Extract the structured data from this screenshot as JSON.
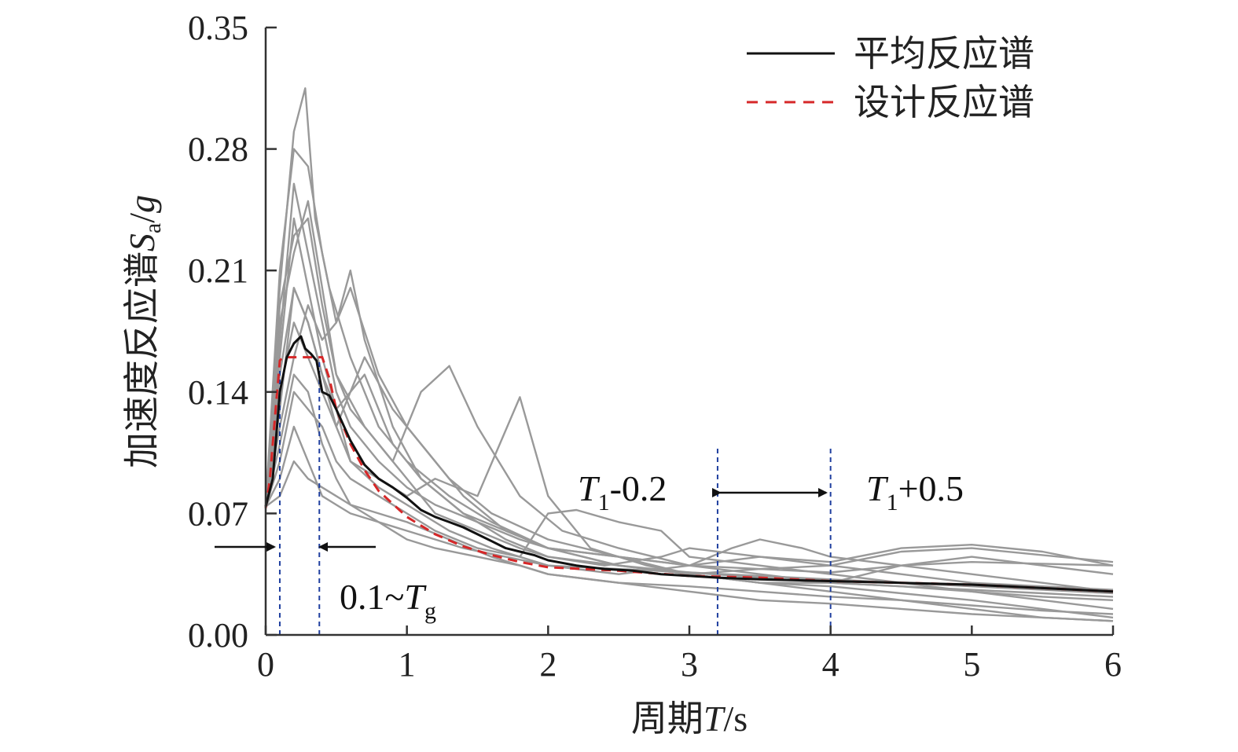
{
  "chart_data": {
    "type": "line",
    "xlabel": {
      "prefix": "周期",
      "var": "T",
      "suffix": "/s"
    },
    "ylabel": {
      "prefix": "加速度反应谱",
      "var": "S",
      "sub": "a",
      "slash": "/",
      "var2": "g"
    },
    "xlim": [
      0,
      6
    ],
    "ylim": [
      0,
      0.35
    ],
    "x_ticks": [
      0,
      1,
      2,
      3,
      4,
      5,
      6
    ],
    "x_tick_labels": [
      "0",
      "1",
      "2",
      "3",
      "4",
      "5",
      "6"
    ],
    "y_ticks": [
      0,
      0.07,
      0.14,
      0.21,
      0.28,
      0.35
    ],
    "y_tick_labels": [
      "0.00",
      "0.07",
      "0.14",
      "0.21",
      "0.28",
      "0.35"
    ],
    "grid": false,
    "legend_position": "top-right",
    "legend": [
      {
        "label": "平均反应谱",
        "color": "#111111",
        "style": "solid"
      },
      {
        "label": "设计反应谱",
        "color": "#d62728",
        "style": "dashed"
      }
    ],
    "mean_spectrum": {
      "name": "平均反应谱",
      "color": "#111111",
      "x": [
        0,
        0.05,
        0.1,
        0.15,
        0.2,
        0.25,
        0.28,
        0.32,
        0.36,
        0.4,
        0.45,
        0.5,
        0.6,
        0.7,
        0.8,
        0.9,
        1.0,
        1.1,
        1.2,
        1.3,
        1.4,
        1.5,
        1.6,
        1.7,
        1.8,
        1.9,
        2.0,
        2.2,
        2.4,
        2.6,
        2.8,
        3.0,
        3.2,
        3.5,
        4.0,
        4.5,
        5.0,
        5.5,
        6.0
      ],
      "y": [
        0.074,
        0.09,
        0.14,
        0.16,
        0.168,
        0.172,
        0.165,
        0.162,
        0.158,
        0.14,
        0.138,
        0.13,
        0.112,
        0.098,
        0.09,
        0.085,
        0.079,
        0.072,
        0.068,
        0.065,
        0.062,
        0.058,
        0.054,
        0.05,
        0.048,
        0.046,
        0.043,
        0.04,
        0.038,
        0.037,
        0.035,
        0.034,
        0.033,
        0.032,
        0.031,
        0.03,
        0.029,
        0.027,
        0.025
      ]
    },
    "design_spectrum": {
      "name": "设计反应谱",
      "color": "#d62728",
      "x": [
        0,
        0.03,
        0.06,
        0.1,
        0.12,
        0.4,
        0.45,
        0.5,
        0.6,
        0.7,
        0.8,
        1.0,
        1.2,
        1.4,
        1.6,
        1.8,
        2.0,
        2.5,
        3.0,
        3.5,
        4.0,
        4.5,
        5.0,
        5.5,
        6.0
      ],
      "y": [
        0.073,
        0.09,
        0.12,
        0.158,
        0.16,
        0.16,
        0.148,
        0.13,
        0.11,
        0.095,
        0.083,
        0.068,
        0.058,
        0.051,
        0.046,
        0.042,
        0.039,
        0.037,
        0.034,
        0.033,
        0.031,
        0.03,
        0.029,
        0.027,
        0.025
      ]
    },
    "record_spectra_color": "#999999",
    "record_spectra": [
      {
        "x": [
          0,
          0.1,
          0.2,
          0.28,
          0.35,
          0.45,
          0.6,
          0.8,
          1.0,
          1.3,
          1.6,
          2.0,
          2.5,
          3.0,
          3.5,
          4.0,
          4.5,
          5.0,
          5.5,
          6.0
        ],
        "y": [
          0.074,
          0.2,
          0.29,
          0.315,
          0.24,
          0.2,
          0.16,
          0.12,
          0.1,
          0.08,
          0.065,
          0.05,
          0.04,
          0.035,
          0.038,
          0.036,
          0.04,
          0.042,
          0.041,
          0.04
        ]
      },
      {
        "x": [
          0,
          0.1,
          0.2,
          0.3,
          0.4,
          0.5,
          0.6,
          0.8,
          1.0,
          1.3,
          1.6,
          2.0,
          2.5,
          3.0,
          3.5,
          4.0,
          4.5,
          5.0,
          5.5,
          6.0
        ],
        "y": [
          0.074,
          0.21,
          0.28,
          0.27,
          0.22,
          0.18,
          0.2,
          0.15,
          0.12,
          0.09,
          0.07,
          0.055,
          0.045,
          0.04,
          0.045,
          0.042,
          0.05,
          0.052,
          0.048,
          0.04
        ]
      },
      {
        "x": [
          0,
          0.1,
          0.2,
          0.3,
          0.4,
          0.5,
          0.7,
          0.9,
          1.1,
          1.3,
          1.5,
          1.8,
          2.1,
          2.5,
          3.0,
          3.5,
          4.0,
          4.5,
          5.0,
          5.5,
          6.0
        ],
        "y": [
          0.074,
          0.18,
          0.22,
          0.25,
          0.2,
          0.15,
          0.12,
          0.1,
          0.14,
          0.155,
          0.12,
          0.08,
          0.06,
          0.05,
          0.04,
          0.035,
          0.03,
          0.028,
          0.025,
          0.022,
          0.02
        ]
      },
      {
        "x": [
          0,
          0.1,
          0.2,
          0.3,
          0.4,
          0.5,
          0.6,
          0.8,
          1.0,
          1.2,
          1.5,
          1.8,
          2.0,
          2.3,
          2.7,
          3.0,
          3.5,
          4.0,
          4.5,
          5.0,
          5.5,
          6.0
        ],
        "y": [
          0.074,
          0.15,
          0.2,
          0.18,
          0.15,
          0.12,
          0.1,
          0.09,
          0.08,
          0.09,
          0.08,
          0.137,
          0.08,
          0.05,
          0.04,
          0.035,
          0.03,
          0.028,
          0.024,
          0.02,
          0.015,
          0.01
        ]
      },
      {
        "x": [
          0,
          0.1,
          0.2,
          0.3,
          0.4,
          0.5,
          0.6,
          0.7,
          0.9,
          1.1,
          1.4,
          1.7,
          2.0,
          2.5,
          3.0,
          3.5,
          4.0,
          4.5,
          5.0,
          5.5,
          6.0
        ],
        "y": [
          0.074,
          0.12,
          0.16,
          0.19,
          0.17,
          0.18,
          0.21,
          0.17,
          0.12,
          0.09,
          0.07,
          0.06,
          0.05,
          0.04,
          0.035,
          0.03,
          0.025,
          0.02,
          0.015,
          0.01,
          0.008
        ]
      },
      {
        "x": [
          0,
          0.1,
          0.2,
          0.3,
          0.4,
          0.5,
          0.6,
          0.8,
          1.0,
          1.2,
          1.5,
          1.8,
          2.0,
          2.2,
          2.5,
          2.8,
          3.0,
          3.5,
          4.0,
          4.5,
          5.0,
          5.5,
          6.0
        ],
        "y": [
          0.074,
          0.1,
          0.14,
          0.13,
          0.12,
          0.1,
          0.09,
          0.08,
          0.07,
          0.06,
          0.05,
          0.045,
          0.07,
          0.072,
          0.065,
          0.06,
          0.045,
          0.04,
          0.035,
          0.03,
          0.025,
          0.02,
          0.015
        ]
      },
      {
        "x": [
          0,
          0.1,
          0.2,
          0.3,
          0.4,
          0.5,
          0.6,
          0.8,
          1.0,
          1.3,
          1.6,
          2.0,
          2.5,
          3.0,
          3.3,
          3.5,
          3.8,
          4.0,
          4.5,
          5.0,
          5.5,
          6.0
        ],
        "y": [
          0.074,
          0.16,
          0.24,
          0.2,
          0.16,
          0.13,
          0.1,
          0.085,
          0.075,
          0.06,
          0.05,
          0.04,
          0.035,
          0.04,
          0.05,
          0.055,
          0.05,
          0.045,
          0.04,
          0.035,
          0.03,
          0.025
        ]
      },
      {
        "x": [
          0,
          0.1,
          0.2,
          0.3,
          0.4,
          0.5,
          0.7,
          0.9,
          1.1,
          1.4,
          1.7,
          2.0,
          2.5,
          3.0,
          3.5,
          4.0,
          4.5,
          5.0,
          5.5,
          6.0
        ],
        "y": [
          0.074,
          0.14,
          0.18,
          0.16,
          0.14,
          0.12,
          0.16,
          0.13,
          0.11,
          0.08,
          0.06,
          0.05,
          0.045,
          0.035,
          0.03,
          0.03,
          0.04,
          0.045,
          0.04,
          0.035
        ]
      },
      {
        "x": [
          0,
          0.1,
          0.2,
          0.3,
          0.4,
          0.5,
          0.6,
          0.8,
          1.0,
          1.2,
          1.5,
          1.8,
          2.0,
          2.5,
          3.0,
          3.5,
          4.0,
          4.5,
          5.0,
          5.5,
          6.0
        ],
        "y": [
          0.074,
          0.11,
          0.15,
          0.14,
          0.11,
          0.09,
          0.075,
          0.065,
          0.055,
          0.05,
          0.045,
          0.04,
          0.035,
          0.03,
          0.028,
          0.025,
          0.022,
          0.02,
          0.017,
          0.014,
          0.012
        ]
      },
      {
        "x": [
          0,
          0.1,
          0.2,
          0.3,
          0.4,
          0.5,
          0.6,
          0.8,
          1.0,
          1.2,
          1.5,
          1.8,
          2.0,
          2.5,
          3.0,
          3.5,
          4.0,
          4.5,
          5.0,
          5.5,
          6.0
        ],
        "y": [
          0.074,
          0.17,
          0.26,
          0.22,
          0.18,
          0.14,
          0.12,
          0.1,
          0.085,
          0.075,
          0.065,
          0.055,
          0.05,
          0.045,
          0.04,
          0.038,
          0.04,
          0.048,
          0.05,
          0.046,
          0.042
        ]
      },
      {
        "x": [
          0,
          0.1,
          0.2,
          0.3,
          0.4,
          0.5,
          0.6,
          0.8,
          1.0,
          1.2,
          1.4,
          1.7,
          2.0,
          2.5,
          3.0,
          3.5,
          4.0,
          4.5,
          5.0,
          5.5,
          6.0
        ],
        "y": [
          0.074,
          0.09,
          0.12,
          0.1,
          0.08,
          0.075,
          0.07,
          0.065,
          0.06,
          0.055,
          0.05,
          0.045,
          0.04,
          0.038,
          0.036,
          0.034,
          0.032,
          0.03,
          0.028,
          0.026,
          0.024
        ]
      },
      {
        "x": [
          0,
          0.1,
          0.2,
          0.3,
          0.4,
          0.5,
          0.7,
          0.9,
          1.1,
          1.4,
          1.7,
          2.0,
          2.4,
          2.8,
          3.0,
          3.5,
          4.0,
          4.5,
          5.0,
          5.5,
          6.0
        ],
        "y": [
          0.074,
          0.13,
          0.2,
          0.18,
          0.15,
          0.13,
          0.15,
          0.11,
          0.09,
          0.07,
          0.055,
          0.045,
          0.04,
          0.045,
          0.05,
          0.045,
          0.04,
          0.035,
          0.03,
          0.028,
          0.026
        ]
      },
      {
        "x": [
          0,
          0.1,
          0.2,
          0.3,
          0.4,
          0.5,
          0.6,
          0.8,
          1.0,
          1.2,
          1.5,
          1.8,
          2.0,
          2.5,
          3.0,
          3.5,
          4.0,
          4.5,
          5.0,
          5.5,
          6.0
        ],
        "y": [
          0.074,
          0.19,
          0.23,
          0.24,
          0.19,
          0.15,
          0.13,
          0.11,
          0.09,
          0.07,
          0.06,
          0.05,
          0.045,
          0.04,
          0.036,
          0.033,
          0.03,
          0.028,
          0.026,
          0.024,
          0.022
        ]
      },
      {
        "x": [
          0,
          0.1,
          0.2,
          0.3,
          0.4,
          0.5,
          0.6,
          0.8,
          1.0,
          1.3,
          1.6,
          2.0,
          2.5,
          3.0,
          3.5,
          4.0,
          4.5,
          5.0,
          5.5,
          6.0
        ],
        "y": [
          0.074,
          0.08,
          0.1,
          0.09,
          0.085,
          0.08,
          0.075,
          0.07,
          0.065,
          0.055,
          0.045,
          0.035,
          0.03,
          0.025,
          0.02,
          0.018,
          0.015,
          0.012,
          0.01,
          0.008
        ]
      }
    ],
    "reference_lines": [
      {
        "x": 0.1,
        "color": "#1f3f9f",
        "style": "dashed"
      },
      {
        "x": 0.38,
        "color": "#1f3f9f",
        "style": "dashed"
      },
      {
        "x": 3.2,
        "color": "#1f3f9f",
        "style": "dashed"
      },
      {
        "x": 4.0,
        "color": "#1f3f9f",
        "style": "dashed"
      }
    ],
    "annotations": [
      {
        "id": "range-low",
        "text": "0.1~",
        "var": "T",
        "sub": "g"
      },
      {
        "id": "t1-minus",
        "var": "T",
        "sub": "1",
        "text": "-0.2"
      },
      {
        "id": "t1-plus",
        "var": "T",
        "sub": "1",
        "text": "+0.5"
      }
    ]
  }
}
